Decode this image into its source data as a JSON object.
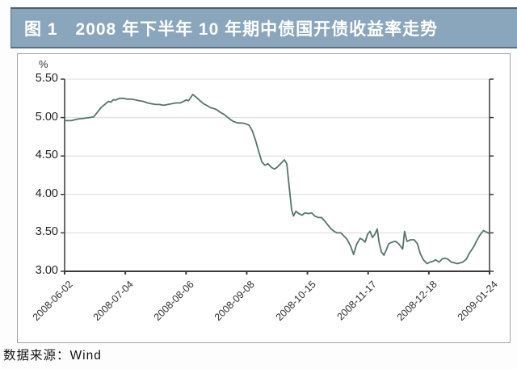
{
  "header": {
    "title": "图 1　2008 年下半年 10 年期中债国开债收益率走势"
  },
  "caption": {
    "text": "数据来源：Wind"
  },
  "colors": {
    "header_bg": "#8aa6bd",
    "header_text": "#ffffff",
    "line": "#57736e",
    "grid": "#dcdcdc",
    "axis": "#3a3a3a"
  },
  "chart_data": {
    "type": "line",
    "title": "图 1　2008 年下半年 10 年期中债国开债收益率走势",
    "unit_label": "%",
    "ylim": [
      3.0,
      5.5
    ],
    "y_ticks": [
      "5.50",
      "5.00",
      "4.50",
      "4.00",
      "3.50",
      "3.00"
    ],
    "x_ticks": [
      "2008-06-02",
      "2008-07-04",
      "2008-08-06",
      "2008-09-08",
      "2008-10-15",
      "2008-11-17",
      "2008-12-18",
      "2009-01-24"
    ],
    "grid": "horizontal",
    "legend": "none",
    "x_unit": "index into x_ticks (0 = 2008-06-02 ... 7 = 2009-01-24)",
    "points": [
      [
        0.0,
        4.96
      ],
      [
        0.11,
        4.96
      ],
      [
        0.21,
        4.98
      ],
      [
        0.31,
        4.99
      ],
      [
        0.41,
        5.0
      ],
      [
        0.48,
        5.01
      ],
      [
        0.54,
        5.07
      ],
      [
        0.6,
        5.13
      ],
      [
        0.66,
        5.17
      ],
      [
        0.72,
        5.21
      ],
      [
        0.76,
        5.2
      ],
      [
        0.8,
        5.23
      ],
      [
        0.85,
        5.23
      ],
      [
        0.9,
        5.25
      ],
      [
        0.97,
        5.25
      ],
      [
        1.03,
        5.24
      ],
      [
        1.1,
        5.24
      ],
      [
        1.17,
        5.23
      ],
      [
        1.23,
        5.22
      ],
      [
        1.3,
        5.21
      ],
      [
        1.37,
        5.19
      ],
      [
        1.43,
        5.18
      ],
      [
        1.5,
        5.17
      ],
      [
        1.56,
        5.17
      ],
      [
        1.63,
        5.16
      ],
      [
        1.7,
        5.17
      ],
      [
        1.76,
        5.18
      ],
      [
        1.83,
        5.19
      ],
      [
        1.9,
        5.19
      ],
      [
        1.96,
        5.21
      ],
      [
        2.0,
        5.23
      ],
      [
        2.04,
        5.22
      ],
      [
        2.11,
        5.3
      ],
      [
        2.16,
        5.27
      ],
      [
        2.23,
        5.22
      ],
      [
        2.29,
        5.18
      ],
      [
        2.36,
        5.15
      ],
      [
        2.4,
        5.13
      ],
      [
        2.45,
        5.12
      ],
      [
        2.51,
        5.1
      ],
      [
        2.56,
        5.07
      ],
      [
        2.63,
        5.04
      ],
      [
        2.69,
        5.0
      ],
      [
        2.74,
        4.97
      ],
      [
        2.78,
        4.95
      ],
      [
        2.85,
        4.93
      ],
      [
        2.92,
        4.93
      ],
      [
        2.98,
        4.92
      ],
      [
        3.04,
        4.9
      ],
      [
        3.09,
        4.83
      ],
      [
        3.14,
        4.72
      ],
      [
        3.2,
        4.55
      ],
      [
        3.25,
        4.42
      ],
      [
        3.3,
        4.38
      ],
      [
        3.35,
        4.4
      ],
      [
        3.41,
        4.35
      ],
      [
        3.46,
        4.33
      ],
      [
        3.51,
        4.36
      ],
      [
        3.57,
        4.41
      ],
      [
        3.62,
        4.45
      ],
      [
        3.66,
        4.4
      ],
      [
        3.7,
        4.1
      ],
      [
        3.74,
        3.8
      ],
      [
        3.77,
        3.72
      ],
      [
        3.81,
        3.78
      ],
      [
        3.86,
        3.75
      ],
      [
        3.91,
        3.73
      ],
      [
        3.96,
        3.76
      ],
      [
        4.02,
        3.75
      ],
      [
        4.07,
        3.76
      ],
      [
        4.12,
        3.72
      ],
      [
        4.18,
        3.7
      ],
      [
        4.23,
        3.7
      ],
      [
        4.28,
        3.66
      ],
      [
        4.34,
        3.6
      ],
      [
        4.39,
        3.55
      ],
      [
        4.44,
        3.52
      ],
      [
        4.49,
        3.5
      ],
      [
        4.55,
        3.5
      ],
      [
        4.6,
        3.46
      ],
      [
        4.65,
        3.42
      ],
      [
        4.71,
        3.33
      ],
      [
        4.76,
        3.22
      ],
      [
        4.81,
        3.35
      ],
      [
        4.87,
        3.43
      ],
      [
        4.91,
        3.41
      ],
      [
        4.95,
        3.38
      ],
      [
        4.99,
        3.48
      ],
      [
        5.03,
        3.52
      ],
      [
        5.07,
        3.44
      ],
      [
        5.11,
        3.48
      ],
      [
        5.15,
        3.55
      ],
      [
        5.18,
        3.38
      ],
      [
        5.22,
        3.25
      ],
      [
        5.26,
        3.21
      ],
      [
        5.3,
        3.28
      ],
      [
        5.34,
        3.36
      ],
      [
        5.4,
        3.38
      ],
      [
        5.45,
        3.39
      ],
      [
        5.5,
        3.36
      ],
      [
        5.54,
        3.32
      ],
      [
        5.57,
        3.29
      ],
      [
        5.6,
        3.52
      ],
      [
        5.64,
        3.39
      ],
      [
        5.7,
        3.41
      ],
      [
        5.76,
        3.41
      ],
      [
        5.81,
        3.36
      ],
      [
        5.86,
        3.23
      ],
      [
        5.91,
        3.15
      ],
      [
        5.97,
        3.1
      ],
      [
        6.02,
        3.12
      ],
      [
        6.07,
        3.13
      ],
      [
        6.11,
        3.15
      ],
      [
        6.17,
        3.12
      ],
      [
        6.22,
        3.16
      ],
      [
        6.27,
        3.17
      ],
      [
        6.31,
        3.16
      ],
      [
        6.37,
        3.12
      ],
      [
        6.42,
        3.11
      ],
      [
        6.47,
        3.1
      ],
      [
        6.52,
        3.11
      ],
      [
        6.56,
        3.12
      ],
      [
        6.62,
        3.16
      ],
      [
        6.67,
        3.24
      ],
      [
        6.74,
        3.32
      ],
      [
        6.79,
        3.4
      ],
      [
        6.84,
        3.47
      ],
      [
        6.9,
        3.53
      ],
      [
        6.95,
        3.51
      ],
      [
        7.0,
        3.49
      ]
    ]
  }
}
